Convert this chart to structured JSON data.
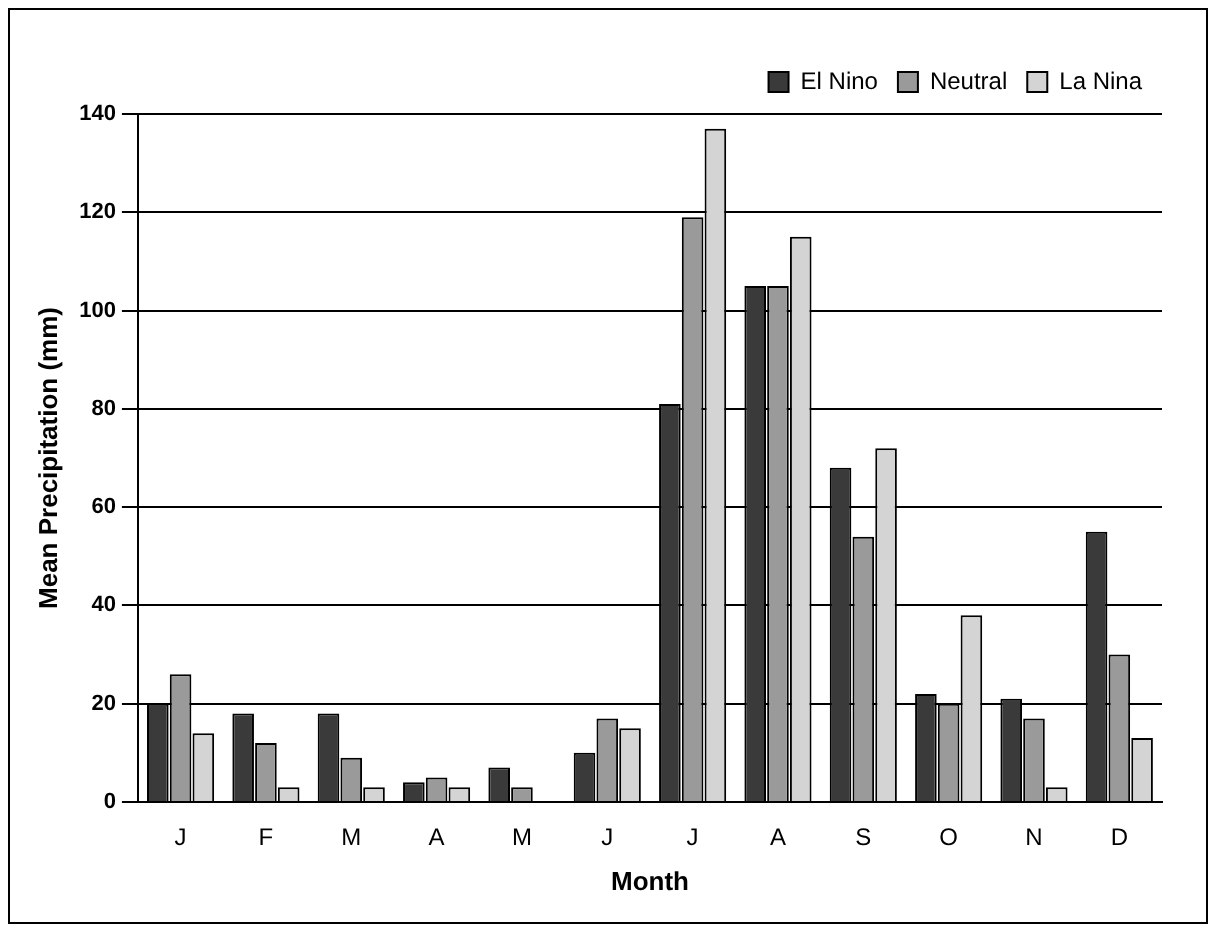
{
  "chart_data": {
    "type": "bar",
    "xlabel": "Month",
    "ylabel": "Mean Precipitation (mm)",
    "categories": [
      "J",
      "F",
      "M",
      "A",
      "M",
      "J",
      "J",
      "A",
      "S",
      "O",
      "N",
      "D"
    ],
    "series": [
      {
        "name": "El Nino",
        "color": "#3a3a3a",
        "values": [
          20,
          18,
          18,
          4,
          7,
          10,
          81,
          105,
          68,
          22,
          21,
          55
        ]
      },
      {
        "name": "Neutral",
        "color": "#9a9a9a",
        "values": [
          26,
          12,
          9,
          5,
          3,
          17,
          119,
          105,
          54,
          20,
          17,
          30
        ]
      },
      {
        "name": "La Nina",
        "color": "#d4d4d4",
        "values": [
          14,
          3,
          3,
          3,
          0,
          15,
          137,
          115,
          72,
          38,
          3,
          13
        ]
      }
    ],
    "ylim": [
      0,
      140
    ],
    "yticks": [
      0,
      20,
      40,
      60,
      80,
      100,
      120,
      140
    ],
    "grid": "y",
    "legend": "top right"
  }
}
